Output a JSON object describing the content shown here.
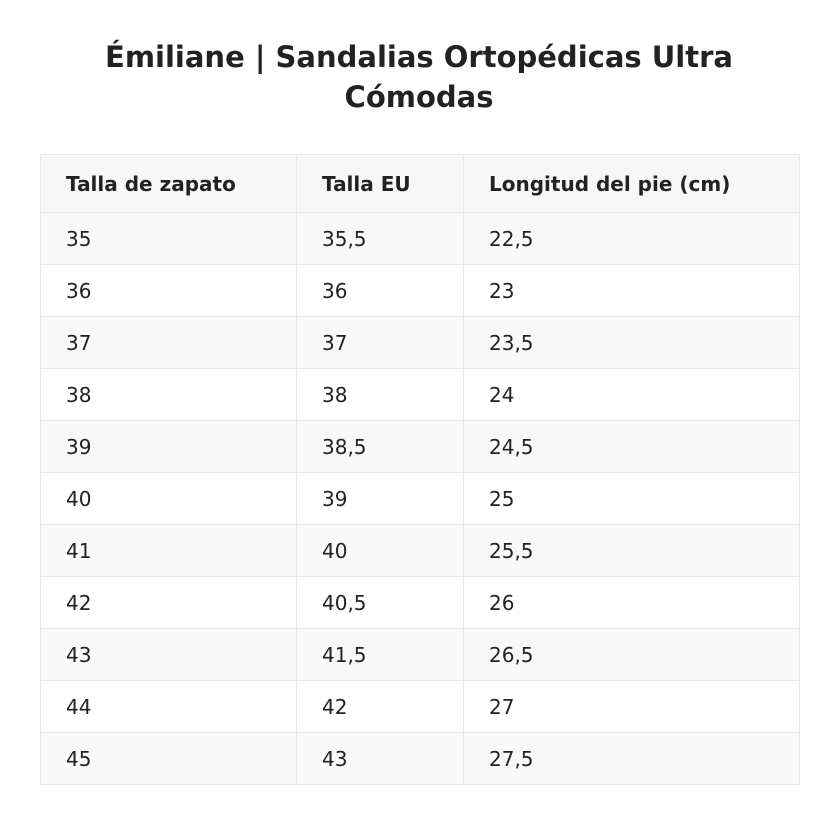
{
  "title": "Émiliane | Sandalias Ortopédicas Ultra Cómodas",
  "table": {
    "headers": [
      "Talla de zapato",
      "Talla EU",
      "Longitud del pie (cm)"
    ],
    "rows": [
      [
        "35",
        "35,5",
        "22,5"
      ],
      [
        "36",
        "36",
        "23"
      ],
      [
        "37",
        "37",
        "23,5"
      ],
      [
        "38",
        "38",
        "24"
      ],
      [
        "39",
        "38,5",
        "24,5"
      ],
      [
        "40",
        "39",
        "25"
      ],
      [
        "41",
        "40",
        "25,5"
      ],
      [
        "42",
        "40,5",
        "26"
      ],
      [
        "43",
        "41,5",
        "26,5"
      ],
      [
        "44",
        "42",
        "27"
      ],
      [
        "45",
        "43",
        "27,5"
      ]
    ]
  }
}
